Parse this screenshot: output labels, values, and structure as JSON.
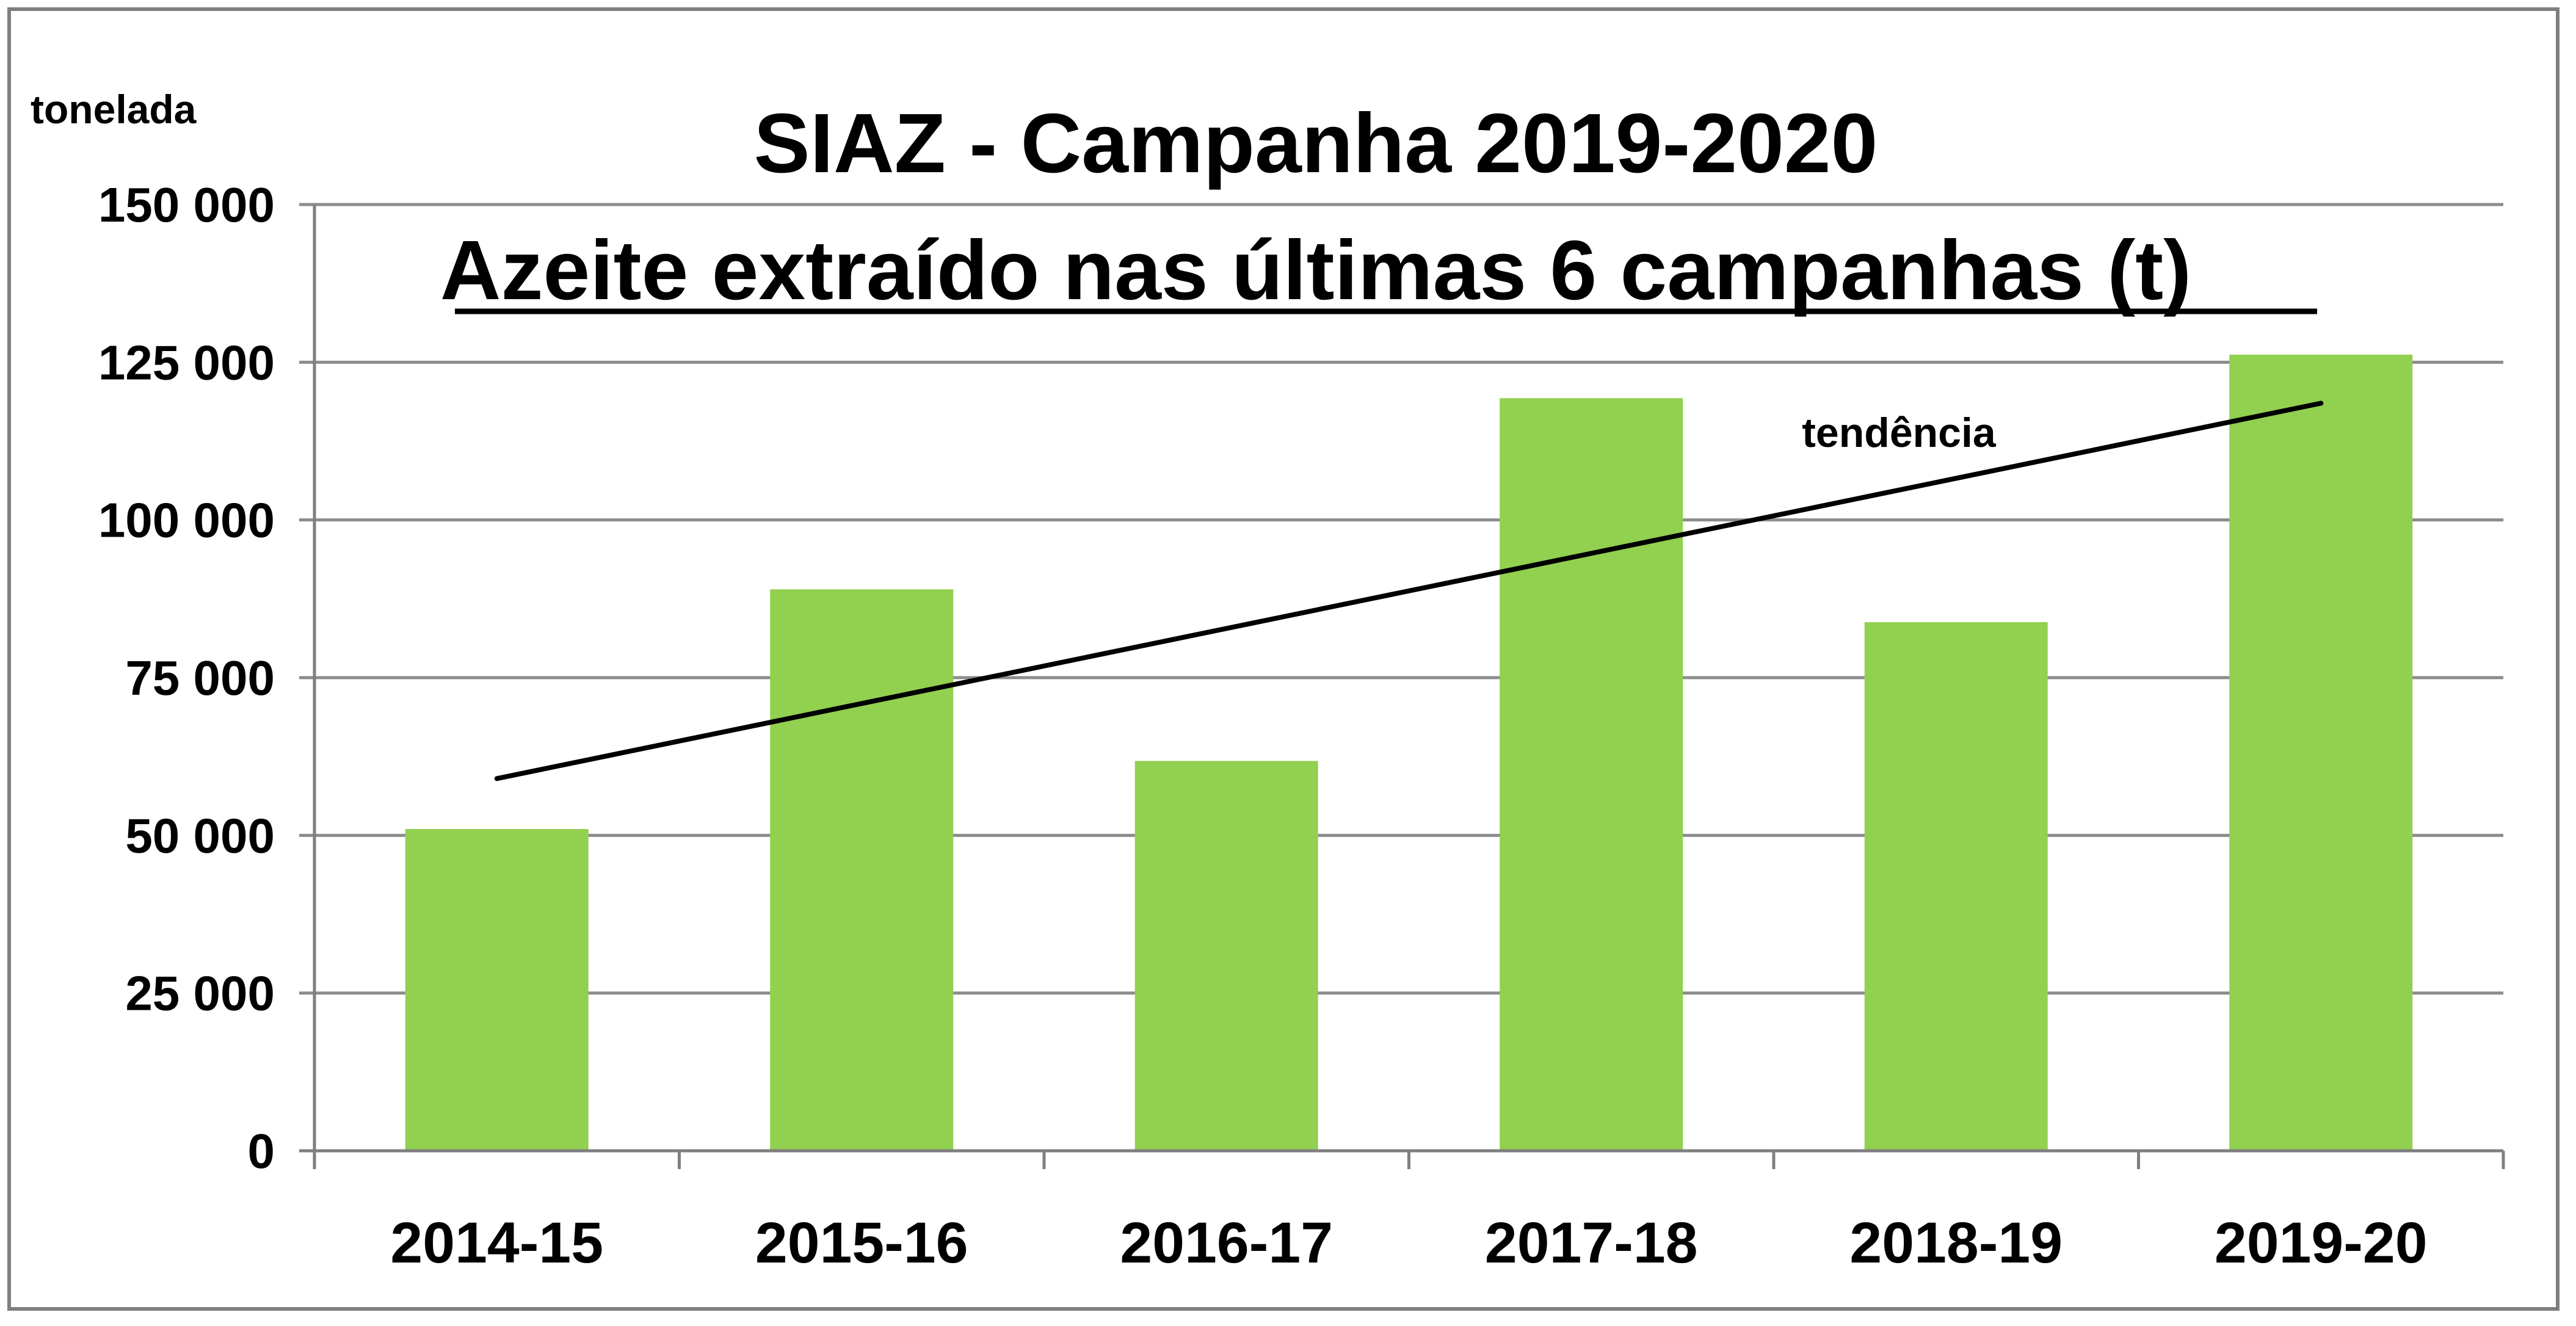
{
  "chart_data": {
    "type": "bar",
    "title": "SIAZ - Campanha 2019-2020",
    "subtitle": "Azeite extraído nas últimas 6 campanhas (t)",
    "ylabel": "tonelada",
    "xlabel": "",
    "categories": [
      "2014-15",
      "2015-16",
      "2016-17",
      "2017-18",
      "2018-19",
      "2019-20"
    ],
    "values": [
      51000,
      89000,
      61800,
      119300,
      83800,
      126200
    ],
    "ylim": [
      0,
      150000
    ],
    "yticks": [
      0,
      25000,
      50000,
      75000,
      100000,
      125000,
      150000
    ],
    "ytick_labels": [
      "0",
      "25 000",
      "50 000",
      "75 000",
      "100 000",
      "125 000",
      "150 000"
    ],
    "grid": true,
    "bar_color": "#92d050",
    "trendline": {
      "label": "tendência",
      "type": "linear",
      "start_value": 59000,
      "end_value": 118500,
      "color": "#000000"
    }
  }
}
